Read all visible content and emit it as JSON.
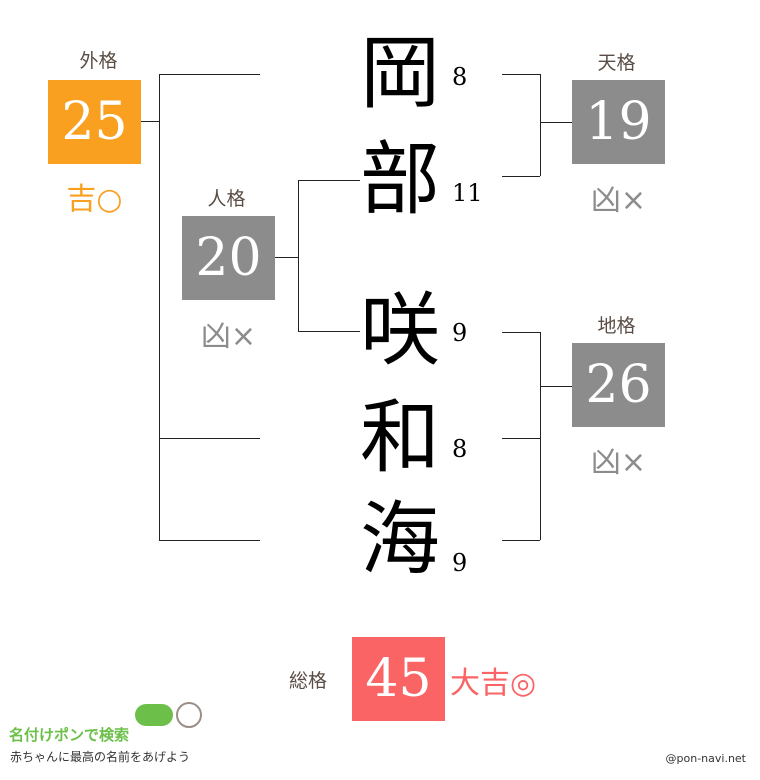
{
  "name_chars": [
    {
      "char": "岡",
      "strokes": "8"
    },
    {
      "char": "部",
      "strokes": "11"
    },
    {
      "char": "咲",
      "strokes": "9"
    },
    {
      "char": "和",
      "strokes": "8"
    },
    {
      "char": "海",
      "strokes": "9"
    }
  ],
  "gaikaku": {
    "label": "外格",
    "value": "25",
    "result": "吉○",
    "color": "#f9a020"
  },
  "jinkaku": {
    "label": "人格",
    "value": "20",
    "result": "凶×",
    "color": "#8c8c8c"
  },
  "tenkaku": {
    "label": "天格",
    "value": "19",
    "result": "凶×",
    "color": "#8c8c8c"
  },
  "chikaku": {
    "label": "地格",
    "value": "26",
    "result": "凶×",
    "color": "#8c8c8c"
  },
  "soukaku": {
    "label": "総格",
    "value": "45",
    "result": "大吉◎",
    "color": "#fa6464"
  },
  "logo": {
    "title": "名付けポンで検索",
    "tagline": "赤ちゃんに最高の名前をあげよう"
  },
  "credit": "@pon-navi.net"
}
